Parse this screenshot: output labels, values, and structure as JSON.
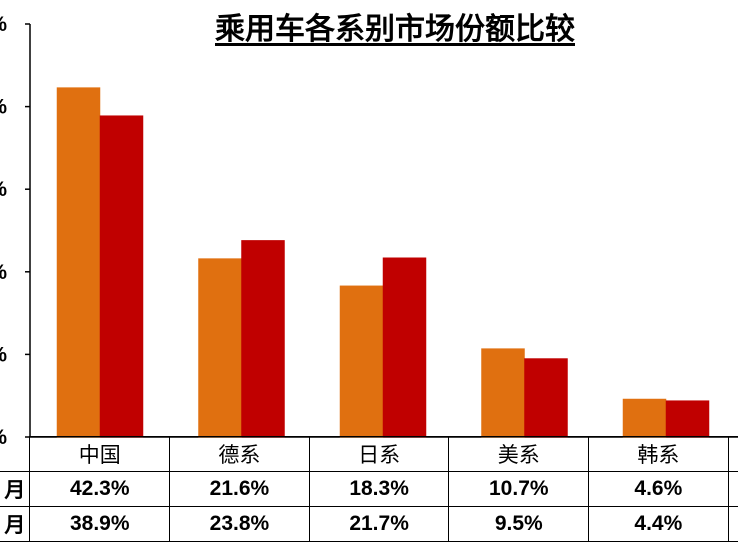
{
  "chart_data": {
    "type": "bar",
    "title": "乘用车各系别市场份额比较",
    "categories": [
      "中国",
      "德系",
      "日系",
      "美系",
      "韩系"
    ],
    "series": [
      {
        "name": "月",
        "values": [
          42.3,
          21.6,
          18.3,
          10.7,
          4.6
        ],
        "labels": [
          "42.3%",
          "21.6%",
          "18.3%",
          "10.7%",
          "4.6%"
        ]
      },
      {
        "name": "月",
        "values": [
          38.9,
          23.8,
          21.7,
          9.5,
          4.4
        ],
        "labels": [
          "38.9%",
          "23.8%",
          "21.7%",
          "9.5%",
          "4.4%"
        ]
      }
    ],
    "ylim": [
      0,
      50
    ],
    "y_tick_labels": [
      "%",
      "%",
      "%",
      "%",
      "%",
      "%"
    ],
    "colors": [
      "#E07010",
      "#C00000"
    ],
    "grid": false
  }
}
